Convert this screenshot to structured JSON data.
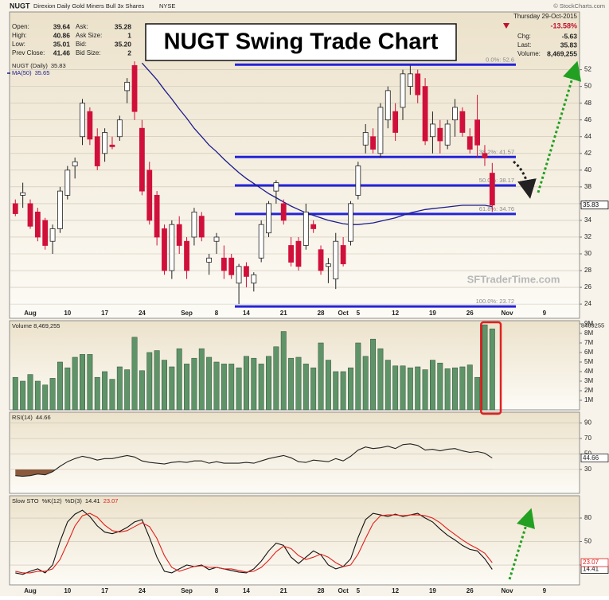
{
  "header": {
    "symbol": "NUGT",
    "name": "Direxion Daily Gold Miners Bull 3x Shares",
    "exchange": "NYSE",
    "copyright": "© StockCharts.com",
    "date": "Thursday 29-Oct-2015",
    "change_pct": "-13.58%",
    "quote_left": [
      {
        "label": "Open:",
        "value": "39.64"
      },
      {
        "label": "High:",
        "value": "40.86"
      },
      {
        "label": "Low:",
        "value": "35.01"
      },
      {
        "label": "Prev Close:",
        "value": "41.46"
      }
    ],
    "quote_mid": [
      {
        "label": "Ask:",
        "value": "35.28"
      },
      {
        "label": "Ask Size:",
        "value": "1"
      },
      {
        "label": "Bid:",
        "value": "35.20"
      },
      {
        "label": "Bid Size:",
        "value": "2"
      }
    ],
    "quote_right": [
      {
        "label": "Chg:",
        "value": "-5.63"
      },
      {
        "label": "Last:",
        "value": "35.83"
      },
      {
        "label": "Volume:",
        "value": "8,469,255"
      }
    ]
  },
  "chart_data": [
    {
      "type": "candlestick",
      "title": "NUGT Swing Trade Chart",
      "legend": "NUGT (Daily)",
      "watermark": "SFTraderTime.com",
      "categories": [
        null,
        null,
        "Aug",
        null,
        null,
        null,
        null,
        "10",
        null,
        null,
        null,
        null,
        "17",
        null,
        null,
        null,
        null,
        "24",
        null,
        null,
        null,
        null,
        null,
        "Sep",
        null,
        null,
        null,
        "8",
        null,
        null,
        null,
        "14",
        null,
        null,
        null,
        null,
        "21",
        null,
        null,
        null,
        null,
        "28",
        null,
        null,
        "Oct",
        null,
        "5",
        null,
        null,
        null,
        null,
        "12",
        null,
        null,
        null,
        null,
        "19",
        null,
        null,
        null,
        null,
        "26",
        null,
        null,
        null,
        null,
        "Nov",
        null,
        null,
        null,
        null,
        "9",
        null,
        null,
        null,
        null
      ],
      "open": [
        36,
        37,
        36,
        35,
        34,
        31.5,
        33,
        37,
        40.5,
        44,
        47,
        44,
        42,
        43,
        44,
        49.5,
        52.5,
        45,
        40,
        37,
        33,
        28,
        33.5,
        31.5,
        32,
        34.5,
        29,
        31.5,
        29.5,
        29.5,
        26.5,
        28.5,
        26.5,
        29.5,
        32.5,
        37.5,
        36,
        31,
        31.5,
        31,
        33.5,
        30.5,
        28.5,
        27,
        31,
        31.5,
        37,
        43,
        44,
        42,
        46,
        47,
        47.5,
        50,
        51.5,
        50,
        44,
        45,
        43,
        46,
        47,
        44,
        46,
        42,
        39.64,
        null,
        null,
        null,
        null,
        null,
        null,
        null,
        null,
        null,
        null,
        null
      ],
      "high": [
        36.5,
        38.5,
        36.5,
        35.5,
        34.3,
        33.5,
        38,
        40.5,
        41.5,
        48.5,
        47.5,
        45,
        45,
        44,
        46.5,
        51,
        53,
        46,
        41,
        37.5,
        33.5,
        34,
        34.5,
        32,
        35.5,
        35,
        30,
        32.5,
        31,
        30,
        28.8,
        29,
        27.8,
        34,
        36.3,
        38.8,
        36.5,
        32,
        32,
        36,
        34,
        31,
        29.5,
        32.5,
        32,
        36.3,
        41,
        45.5,
        45,
        48,
        50,
        48,
        52,
        52.5,
        52,
        51,
        47,
        46,
        46,
        48.5,
        47.5,
        45,
        49,
        43,
        40.86,
        null,
        null,
        null,
        null,
        null,
        null,
        null,
        null,
        null,
        null,
        null
      ],
      "low": [
        34.5,
        35.5,
        33,
        31.5,
        30.5,
        30,
        32.5,
        36.5,
        39,
        43,
        43,
        40,
        41,
        42.5,
        43.5,
        48,
        46,
        37,
        33.5,
        31,
        27.5,
        27,
        30,
        27,
        31,
        31.5,
        27.5,
        30,
        27,
        27,
        24,
        26,
        25.5,
        29,
        32,
        36,
        33.5,
        28.5,
        28,
        30.5,
        32.5,
        27.5,
        26.5,
        25.8,
        28.5,
        31,
        36.5,
        42,
        42,
        41.5,
        45,
        43.5,
        46,
        49,
        48,
        43,
        42,
        42,
        42.5,
        44,
        44,
        42,
        41.5,
        40.5,
        35.01,
        null,
        null,
        null,
        null,
        null,
        null,
        null,
        null,
        null,
        null,
        null
      ],
      "close": [
        34.8,
        37.3,
        33.3,
        32,
        31,
        33,
        37.5,
        40,
        41,
        48,
        43.7,
        40.5,
        44.5,
        42.8,
        46,
        50.5,
        47,
        37.5,
        34,
        32,
        28,
        33.5,
        31,
        28,
        35,
        32,
        29.5,
        32,
        28,
        27.5,
        28.5,
        27.3,
        27.5,
        33.5,
        36,
        38.5,
        34,
        29,
        28.5,
        35,
        33,
        28,
        28.8,
        31.5,
        28.8,
        36,
        40.5,
        44.5,
        42.5,
        47.5,
        49.5,
        44.5,
        51.5,
        51.5,
        49,
        43.5,
        45.5,
        43.5,
        45.5,
        47.5,
        44.5,
        42.5,
        43,
        41.46,
        35.83,
        null,
        null,
        null,
        null,
        null,
        null,
        null,
        null,
        null,
        null,
        null
      ],
      "ma": {
        "name": "MA(50)",
        "color": "#1c1c8c",
        "values": [
          null,
          null,
          null,
          null,
          null,
          null,
          null,
          null,
          null,
          null,
          null,
          null,
          null,
          null,
          null,
          null,
          null,
          52.8,
          51.8,
          50.8,
          49.6,
          48.5,
          47.3,
          46.2,
          45.0,
          44.0,
          43.0,
          42.2,
          41.3,
          40.5,
          39.7,
          39.0,
          38.4,
          37.8,
          37.2,
          36.7,
          36.2,
          35.7,
          35.3,
          34.9,
          34.6,
          34.3,
          34.0,
          33.8,
          33.6,
          33.5,
          33.5,
          33.6,
          33.7,
          33.9,
          34.1,
          34.3,
          34.6,
          34.9,
          35.1,
          35.3,
          35.4,
          35.5,
          35.6,
          35.7,
          35.8,
          35.8,
          35.8,
          35.8,
          35.65,
          null,
          null,
          null,
          null,
          null,
          null,
          null,
          null,
          null,
          null,
          null
        ]
      },
      "levels": [
        {
          "value": 52.6,
          "label": "0.0%: 52.6"
        },
        {
          "value": 41.57,
          "label": "38.2%: 41.57"
        },
        {
          "value": 38.17,
          "label": "50.0%: 38.17"
        },
        {
          "value": 34.76,
          "label": "61.8%: 34.76"
        },
        {
          "value": 23.72,
          "label": "100.0%: 23.72"
        }
      ],
      "level_color": "#2424d8",
      "up_color": "#ffffff",
      "down_color": "#d0103a",
      "ylim": [
        22.3,
        58.9
      ],
      "yticks": [
        24,
        26,
        28,
        30,
        32,
        34,
        36,
        38,
        40,
        42,
        44,
        46,
        48,
        50,
        52
      ],
      "grid": true
    },
    {
      "type": "bar",
      "legend": "Volume 8,469,255",
      "color": "#5e9468",
      "values": [
        3400000,
        3000000,
        3700000,
        3000000,
        2600000,
        3300000,
        5000000,
        4400000,
        5500000,
        5800000,
        5800000,
        3400000,
        4000000,
        3200000,
        4500000,
        4200000,
        7600000,
        4100000,
        6000000,
        6200000,
        5200000,
        4500000,
        6400000,
        4800000,
        5400000,
        6400000,
        5500000,
        5000000,
        4800000,
        4800000,
        4400000,
        5600000,
        5400000,
        4800000,
        5600000,
        6600000,
        8200000,
        5400000,
        5500000,
        4800000,
        4400000,
        7000000,
        5200000,
        4000000,
        4000000,
        4400000,
        7000000,
        5600000,
        7400000,
        6400000,
        5200000,
        4600000,
        4600000,
        4400000,
        4500000,
        4200000,
        5200000,
        4900000,
        4300000,
        4400000,
        4500000,
        4700000,
        3400000,
        8900000,
        8469255,
        null,
        null,
        null,
        null,
        null,
        null,
        null,
        null,
        null,
        null,
        null
      ],
      "ylim": [
        0,
        9330000
      ],
      "yticks": [
        {
          "value": 1000000,
          "label": "1M"
        },
        {
          "value": 2000000,
          "label": "2M"
        },
        {
          "value": 3000000,
          "label": "3M"
        },
        {
          "value": 4000000,
          "label": "4M"
        },
        {
          "value": 5000000,
          "label": "5M"
        },
        {
          "value": 6000000,
          "label": "6M"
        },
        {
          "value": 7000000,
          "label": "7M"
        },
        {
          "value": 8000000,
          "label": "8M"
        },
        {
          "value": 9000000,
          "label": "9M"
        }
      ],
      "grid": false
    },
    {
      "type": "line",
      "series": [
        {
          "name": "RSI(14)",
          "color": "#222222",
          "values": [
            22,
            21,
            22,
            24,
            23,
            27,
            34,
            40,
            44,
            47,
            45,
            42,
            44,
            44,
            46,
            48,
            46,
            41,
            39,
            38,
            37,
            39,
            40,
            39,
            41,
            41,
            38,
            40,
            38,
            38,
            38,
            39,
            38,
            41,
            44,
            46,
            48,
            45,
            40,
            39,
            42,
            41,
            40,
            44,
            41,
            47,
            55,
            59,
            57,
            58,
            60,
            57,
            62,
            63,
            61,
            55,
            56,
            54,
            56,
            57,
            54,
            52,
            53,
            51,
            44.66,
            null,
            null,
            null,
            null,
            null,
            null,
            null,
            null,
            null,
            null,
            null
          ]
        }
      ],
      "oversold_fill": "#8b5a3c",
      "ylim": [
        -1,
        104
      ],
      "yticks": [
        30,
        50,
        70,
        90
      ],
      "grid": true
    },
    {
      "type": "line",
      "title": "Slow STO",
      "series": [
        {
          "name": "%K(12)",
          "color": "#111111",
          "values": [
            10,
            8,
            12,
            15,
            10,
            20,
            50,
            75,
            85,
            90,
            82,
            70,
            62,
            60,
            63,
            68,
            75,
            78,
            55,
            30,
            12,
            10,
            15,
            20,
            18,
            20,
            14,
            17,
            15,
            13,
            11,
            10,
            15,
            25,
            38,
            48,
            45,
            30,
            22,
            30,
            38,
            33,
            20,
            15,
            18,
            28,
            55,
            78,
            86,
            84,
            82,
            85,
            82,
            84,
            86,
            80,
            75,
            66,
            58,
            52,
            45,
            40,
            38,
            28,
            14.41,
            null,
            null,
            null,
            null,
            null,
            null,
            null,
            null,
            null,
            null,
            null
          ]
        },
        {
          "name": "%D(3)",
          "color": "#e0201c",
          "values": [
            12,
            10,
            10,
            12,
            12,
            15,
            27,
            48,
            70,
            83,
            86,
            81,
            71,
            64,
            62,
            64,
            69,
            74,
            69,
            54,
            32,
            17,
            12,
            15,
            18,
            19,
            17,
            17,
            15,
            15,
            13,
            11,
            12,
            17,
            26,
            37,
            44,
            41,
            32,
            27,
            30,
            34,
            30,
            23,
            18,
            20,
            34,
            54,
            73,
            83,
            84,
            84,
            83,
            84,
            84,
            83,
            80,
            74,
            66,
            59,
            52,
            46,
            41,
            35,
            23.07,
            null,
            null,
            null,
            null,
            null,
            null,
            null,
            null,
            null,
            null,
            null
          ]
        }
      ],
      "categories": [
        null,
        null,
        "Aug",
        null,
        null,
        null,
        null,
        "10",
        null,
        null,
        null,
        null,
        "17",
        null,
        null,
        null,
        null,
        "24",
        null,
        null,
        null,
        null,
        null,
        "Sep",
        null,
        null,
        null,
        "8",
        null,
        null,
        null,
        "14",
        null,
        null,
        null,
        null,
        "21",
        null,
        null,
        null,
        null,
        "28",
        null,
        null,
        "Oct",
        null,
        "5",
        null,
        null,
        null,
        null,
        "12",
        null,
        null,
        null,
        null,
        "19",
        null,
        null,
        null,
        null,
        "26",
        null,
        null,
        null,
        null,
        "Nov",
        null,
        null,
        null,
        null,
        "9",
        null,
        null,
        null,
        null
      ],
      "ylim": [
        -5.4,
        108.5
      ],
      "yticks": [
        20,
        50,
        80
      ],
      "grid": true
    }
  ]
}
